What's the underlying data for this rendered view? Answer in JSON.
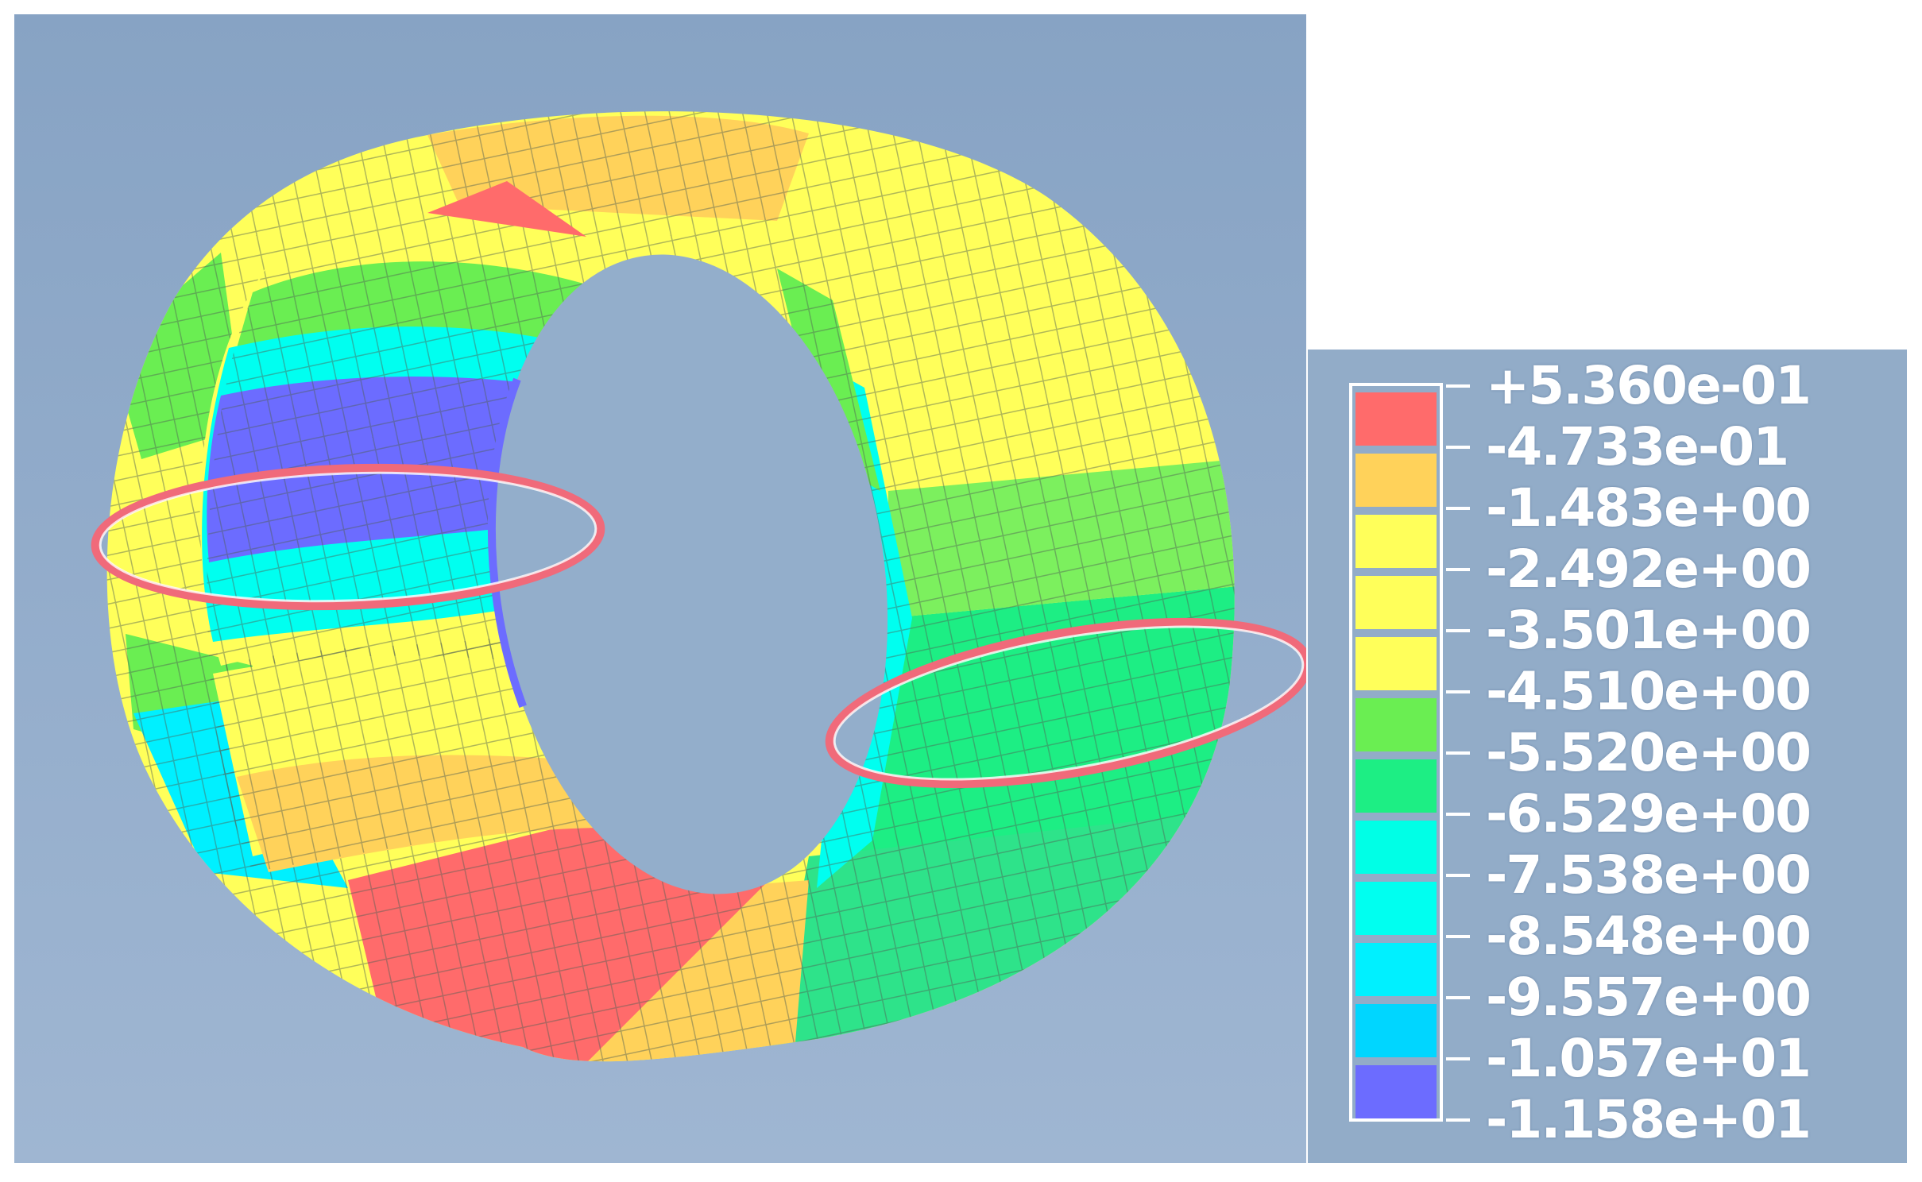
{
  "legend": {
    "labels": [
      "+5.360e-01",
      "-4.733e-01",
      "-1.483e+00",
      "-2.492e+00",
      "-3.501e+00",
      "-4.510e+00",
      "-5.520e+00",
      "-6.529e+00",
      "-7.538e+00",
      "-8.548e+00",
      "-9.557e+00",
      "-1.057e+01",
      "-1.158e+01"
    ],
    "colors": [
      "#ff6b6b",
      "#ffd25a",
      "#ffff5a",
      "#ffff5a",
      "#ffff5a",
      "#6aee52",
      "#1dee84",
      "#00ffe6",
      "#00fff0",
      "#00f0ff",
      "#00d6ff",
      "#6c6cff"
    ]
  },
  "colors": {
    "highlight": "#f06a7a",
    "background": "#92acc8",
    "mesh": "#5a6a5a"
  }
}
